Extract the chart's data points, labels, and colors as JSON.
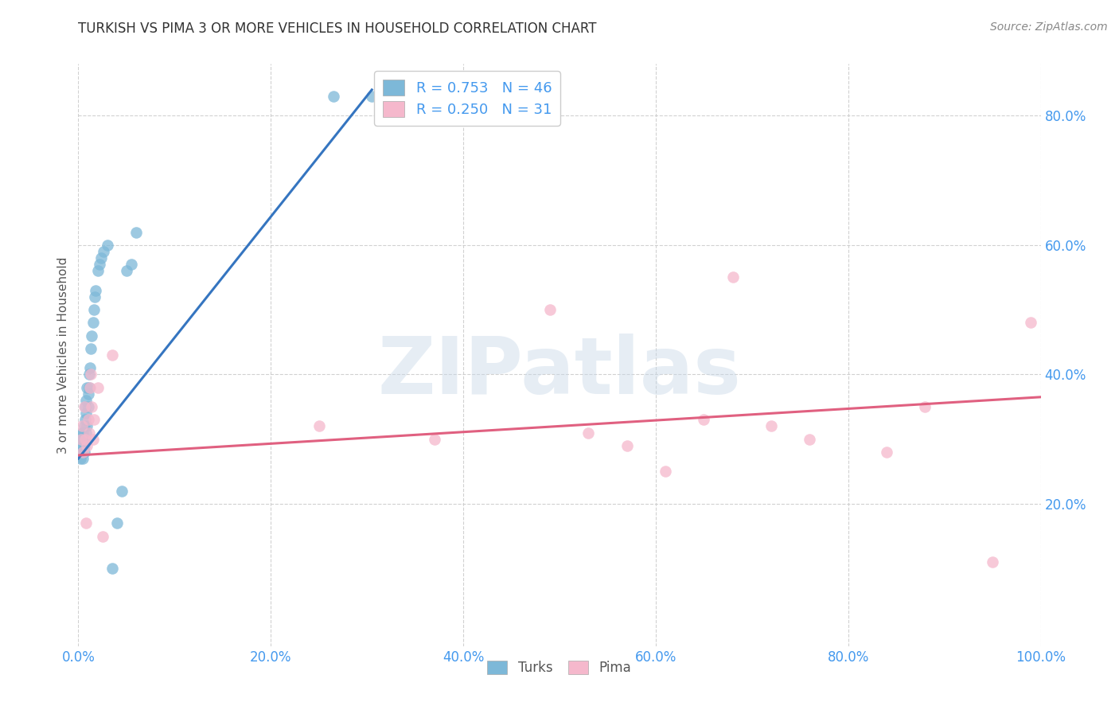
{
  "title": "TURKISH VS PIMA 3 OR MORE VEHICLES IN HOUSEHOLD CORRELATION CHART",
  "source": "Source: ZipAtlas.com",
  "ylabel_label": "3 or more Vehicles in Household",
  "xmin": 0.0,
  "xmax": 1.0,
  "ymin": -0.02,
  "ymax": 0.88,
  "turks_scatter_x": [
    0.002,
    0.003,
    0.003,
    0.004,
    0.004,
    0.004,
    0.005,
    0.005,
    0.005,
    0.005,
    0.006,
    0.006,
    0.006,
    0.006,
    0.007,
    0.007,
    0.007,
    0.008,
    0.008,
    0.008,
    0.009,
    0.009,
    0.01,
    0.01,
    0.011,
    0.011,
    0.012,
    0.013,
    0.014,
    0.015,
    0.016,
    0.017,
    0.018,
    0.02,
    0.022,
    0.024,
    0.026,
    0.03,
    0.035,
    0.04,
    0.045,
    0.05,
    0.055,
    0.06,
    0.265,
    0.305
  ],
  "turks_scatter_y": [
    0.27,
    0.29,
    0.3,
    0.28,
    0.31,
    0.3,
    0.27,
    0.29,
    0.3,
    0.31,
    0.28,
    0.3,
    0.32,
    0.29,
    0.33,
    0.3,
    0.35,
    0.31,
    0.34,
    0.36,
    0.32,
    0.38,
    0.35,
    0.37,
    0.38,
    0.4,
    0.41,
    0.44,
    0.46,
    0.48,
    0.5,
    0.52,
    0.53,
    0.56,
    0.57,
    0.58,
    0.59,
    0.6,
    0.1,
    0.17,
    0.22,
    0.56,
    0.57,
    0.62,
    0.83,
    0.83
  ],
  "pima_scatter_x": [
    0.003,
    0.004,
    0.005,
    0.006,
    0.007,
    0.008,
    0.009,
    0.01,
    0.011,
    0.012,
    0.013,
    0.014,
    0.015,
    0.016,
    0.02,
    0.025,
    0.035,
    0.25,
    0.37,
    0.49,
    0.53,
    0.57,
    0.61,
    0.65,
    0.68,
    0.72,
    0.76,
    0.84,
    0.88,
    0.95,
    0.99
  ],
  "pima_scatter_y": [
    0.3,
    0.32,
    0.28,
    0.35,
    0.3,
    0.17,
    0.29,
    0.33,
    0.31,
    0.38,
    0.4,
    0.35,
    0.3,
    0.33,
    0.38,
    0.15,
    0.43,
    0.32,
    0.3,
    0.5,
    0.31,
    0.29,
    0.25,
    0.33,
    0.55,
    0.32,
    0.3,
    0.28,
    0.35,
    0.11,
    0.48
  ],
  "turks_line_x": [
    0.0,
    0.305
  ],
  "turks_line_y": [
    0.27,
    0.84
  ],
  "pima_line_x": [
    0.0,
    1.0
  ],
  "pima_line_y": [
    0.275,
    0.365
  ],
  "watermark_text": "ZIPatlas",
  "bg_color": "#ffffff",
  "turks_color": "#7db8d8",
  "pima_color": "#f5b8cc",
  "turks_line_color": "#3575c0",
  "pima_line_color": "#e06080",
  "grid_color": "#cccccc",
  "tick_color": "#4499ee",
  "title_color": "#333333",
  "source_color": "#888888",
  "ylabel_color": "#555555"
}
